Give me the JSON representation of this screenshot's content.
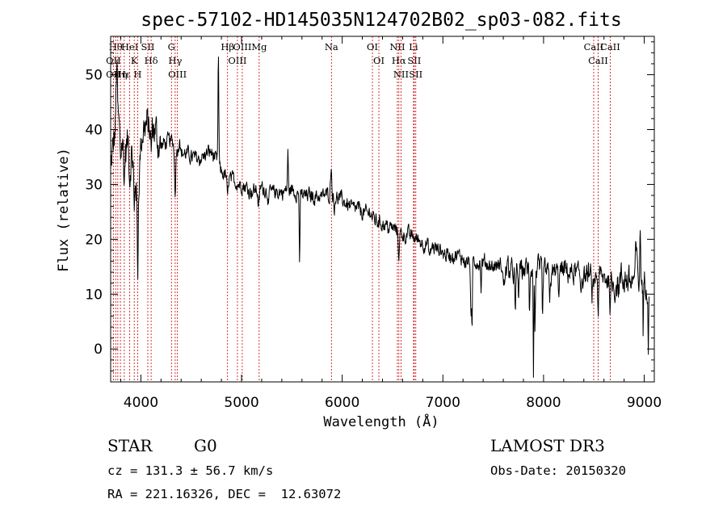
{
  "chart_data": {
    "type": "line",
    "title": "spec-57102-HD145035N124702B02_sp03-082.fits",
    "xlabel": "Wavelength (Å)",
    "ylabel": "Flux (relative)",
    "xlim": [
      3700,
      9100
    ],
    "ylim": [
      -6,
      57
    ],
    "xticks": [
      4000,
      5000,
      6000,
      7000,
      8000,
      9000
    ],
    "yticks": [
      0,
      10,
      20,
      30,
      40,
      50
    ],
    "grid": false,
    "line_color": "#000000",
    "marker_color": "#cc0000",
    "continuum": [
      [
        3700,
        32
      ],
      [
        3760,
        42
      ],
      [
        3800,
        40
      ],
      [
        3850,
        36
      ],
      [
        3880,
        38
      ],
      [
        3900,
        35
      ],
      [
        3930,
        33
      ],
      [
        3970,
        28
      ],
      [
        4000,
        38
      ],
      [
        4050,
        41
      ],
      [
        4100,
        40
      ],
      [
        4200,
        37
      ],
      [
        4300,
        38
      ],
      [
        4400,
        36
      ],
      [
        4500,
        35
      ],
      [
        4600,
        35
      ],
      [
        4700,
        36
      ],
      [
        4800,
        32
      ],
      [
        4900,
        31
      ],
      [
        5000,
        30
      ],
      [
        5100,
        29
      ],
      [
        5200,
        29.5
      ],
      [
        5300,
        28.5
      ],
      [
        5400,
        28.5
      ],
      [
        5500,
        29
      ],
      [
        5600,
        28
      ],
      [
        5700,
        28
      ],
      [
        5800,
        28
      ],
      [
        5900,
        28.5
      ],
      [
        6000,
        27
      ],
      [
        6100,
        26
      ],
      [
        6200,
        25
      ],
      [
        6300,
        24
      ],
      [
        6400,
        23
      ],
      [
        6500,
        22
      ],
      [
        6600,
        21
      ],
      [
        6700,
        20.5
      ],
      [
        6800,
        19.5
      ],
      [
        6900,
        18.5
      ],
      [
        7000,
        17.5
      ],
      [
        7100,
        17
      ],
      [
        7200,
        16.5
      ],
      [
        7300,
        16
      ],
      [
        7400,
        15.5
      ],
      [
        7500,
        15
      ],
      [
        7600,
        15
      ],
      [
        7700,
        14.5
      ],
      [
        7800,
        14.5
      ],
      [
        7900,
        14.5
      ],
      [
        8000,
        14
      ],
      [
        8100,
        14
      ],
      [
        8200,
        14
      ],
      [
        8300,
        13.5
      ],
      [
        8400,
        13.5
      ],
      [
        8500,
        13
      ],
      [
        8600,
        12.5
      ],
      [
        8700,
        12.5
      ],
      [
        8800,
        12
      ],
      [
        8900,
        13
      ],
      [
        9000,
        12
      ]
    ],
    "features": [
      [
        3730,
        4,
        0
      ],
      [
        3760,
        10,
        6
      ],
      [
        3798,
        -5,
        5
      ],
      [
        3835,
        -6,
        5
      ],
      [
        3889,
        -6,
        6
      ],
      [
        3934,
        -9,
        5
      ],
      [
        3968,
        -15,
        5
      ],
      [
        4102,
        -5,
        6
      ],
      [
        4340,
        -8,
        6
      ],
      [
        4385,
        3,
        5
      ],
      [
        4770,
        20,
        4
      ],
      [
        4861,
        -4,
        6
      ],
      [
        5170,
        -3,
        8
      ],
      [
        5270,
        -2,
        6
      ],
      [
        5460,
        7,
        4
      ],
      [
        5577,
        -12,
        4
      ],
      [
        5890,
        5,
        6
      ],
      [
        5920,
        -3,
        4
      ],
      [
        6280,
        1,
        8
      ],
      [
        6563,
        -4,
        6
      ],
      [
        6870,
        -2,
        10
      ],
      [
        7280,
        -11,
        5
      ],
      [
        7290,
        -13,
        3
      ],
      [
        7380,
        -5,
        4
      ],
      [
        7605,
        -4,
        8
      ],
      [
        7720,
        -9,
        5
      ],
      [
        7750,
        -6,
        4
      ],
      [
        7860,
        -8,
        4
      ],
      [
        7900,
        -21,
        3
      ],
      [
        7915,
        -12,
        4
      ],
      [
        7990,
        -10,
        4
      ],
      [
        8060,
        -4,
        5
      ],
      [
        8150,
        -3,
        5
      ],
      [
        8370,
        -2,
        5
      ],
      [
        8480,
        -4,
        5
      ],
      [
        8498,
        -4,
        3
      ],
      [
        8542,
        -7,
        4
      ],
      [
        8662,
        -5,
        4
      ],
      [
        8920,
        5,
        6
      ],
      [
        8960,
        8,
        5
      ],
      [
        8990,
        -10,
        3
      ],
      [
        9040,
        -14,
        3
      ]
    ],
    "noise_amplitude": 1.1,
    "markers": [
      {
        "x": 3750,
        "labels": [
          "Hθ"
        ]
      },
      {
        "x": 3727,
        "labels": [
          "OII",
          "OII"
        ]
      },
      {
        "x": 3771,
        "labels": []
      },
      {
        "x": 3797,
        "labels": [
          "Hη"
        ]
      },
      {
        "x": 3835,
        "labels": [
          "Hε"
        ]
      },
      {
        "x": 3889,
        "labels": [
          "HeI"
        ]
      },
      {
        "x": 3934,
        "labels": [
          "K"
        ]
      },
      {
        "x": 3968,
        "labels": [
          "H"
        ]
      },
      {
        "x": 4069,
        "labels": [
          "SII"
        ]
      },
      {
        "x": 4102,
        "labels": [
          "Hδ"
        ]
      },
      {
        "x": 4304,
        "labels": [
          "G"
        ]
      },
      {
        "x": 4341,
        "labels": [
          "Hγ"
        ]
      },
      {
        "x": 4363,
        "labels": [
          "OIII"
        ]
      },
      {
        "x": 4861,
        "labels": [
          "Hβ"
        ]
      },
      {
        "x": 4959,
        "labels": [
          "OIII"
        ]
      },
      {
        "x": 5007,
        "labels": [
          "OIII"
        ]
      },
      {
        "x": 5175,
        "labels": [
          "Mg"
        ]
      },
      {
        "x": 5893,
        "labels": [
          "Na"
        ]
      },
      {
        "x": 6300,
        "labels": [
          "OI"
        ]
      },
      {
        "x": 6364,
        "labels": [
          "OI"
        ]
      },
      {
        "x": 6548,
        "labels": [
          "NII"
        ]
      },
      {
        "x": 6563,
        "labels": [
          "Hα"
        ]
      },
      {
        "x": 6584,
        "labels": [
          "NII"
        ]
      },
      {
        "x": 6708,
        "labels": [
          "Li"
        ]
      },
      {
        "x": 6716,
        "labels": [
          "SII"
        ]
      },
      {
        "x": 6731,
        "labels": [
          "SII"
        ]
      },
      {
        "x": 8498,
        "labels": [
          "CaII"
        ]
      },
      {
        "x": 8542,
        "labels": [
          "CaII"
        ]
      },
      {
        "x": 8662,
        "labels": [
          "CaII"
        ]
      }
    ]
  },
  "info": {
    "class": "STAR",
    "subclass": "G0",
    "survey": "LAMOST DR3",
    "cz": "cz = 131.3 ± 56.7 km/s",
    "obs_date": "Obs-Date: 20150320",
    "radec": "RA = 221.16326, DEC =  12.63072"
  }
}
